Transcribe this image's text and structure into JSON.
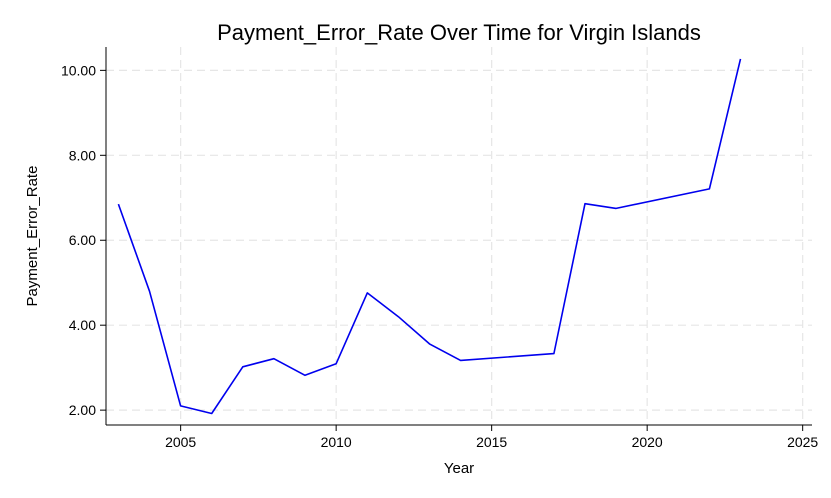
{
  "chart_data": {
    "type": "line",
    "title": "Payment_Error_Rate Over Time for Virgin Islands",
    "xlabel": "Year",
    "ylabel": "Payment_Error_Rate",
    "xlim": [
      2002.6,
      2025.3
    ],
    "ylim": [
      1.65,
      10.55
    ],
    "x_ticks": [
      2005,
      2010,
      2015,
      2020,
      2025
    ],
    "x_tick_labels": [
      "2005",
      "2010",
      "2015",
      "2020",
      "2025"
    ],
    "y_ticks": [
      2,
      4,
      6,
      8,
      10
    ],
    "y_tick_labels": [
      "2.00",
      "4.00",
      "6.00",
      "8.00",
      "10.00"
    ],
    "grid": true,
    "series": [
      {
        "color": "#0000ee",
        "x": [
          2003,
          2004,
          2005,
          2006,
          2007,
          2008,
          2009,
          2010,
          2011,
          2012,
          2013,
          2014,
          2017,
          2018,
          2019,
          2022,
          2023
        ],
        "values": [
          6.85,
          4.8,
          2.1,
          1.92,
          3.02,
          3.21,
          2.82,
          3.09,
          4.76,
          4.2,
          3.56,
          3.17,
          3.33,
          6.86,
          6.75,
          7.21,
          10.27
        ]
      }
    ]
  }
}
